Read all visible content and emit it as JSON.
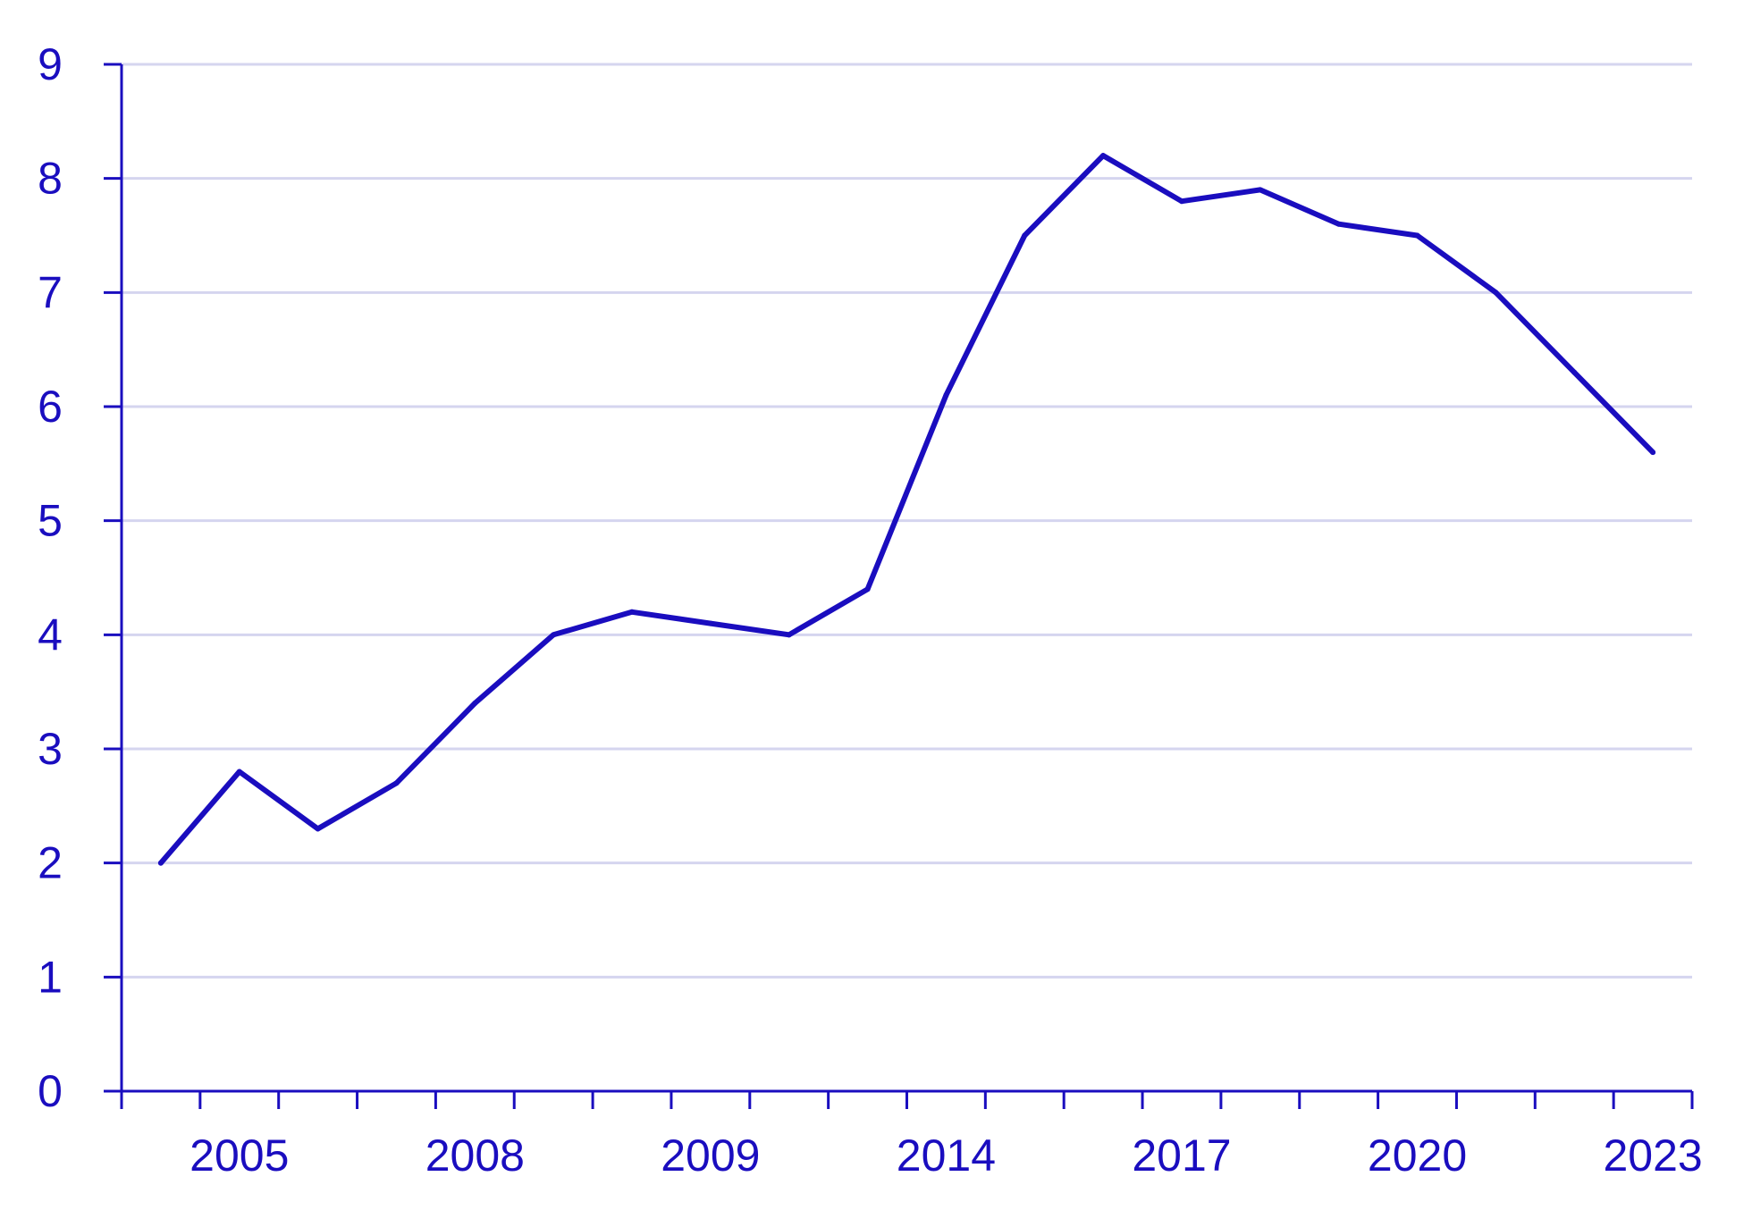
{
  "chart_data": {
    "type": "line",
    "title": "",
    "xlabel": "",
    "ylabel": "",
    "ylim": [
      0,
      9
    ],
    "yticks": [
      0,
      1,
      2,
      3,
      4,
      5,
      6,
      7,
      8,
      9
    ],
    "x_tick_labels": [
      "2005",
      "2008",
      "2009",
      "2014",
      "2017",
      "2020",
      "2023"
    ],
    "grid": true,
    "colors": {
      "line": "#1a0dbf",
      "axis": "#1a0dbf",
      "grid": "#d5d5ef",
      "text": "#1a0dbf"
    },
    "series": [
      {
        "values": [
          2.0,
          2.8,
          2.3,
          2.7,
          3.4,
          4.0,
          4.2,
          4.1,
          4.0,
          4.4,
          6.1,
          7.5,
          8.2,
          7.8,
          7.9,
          7.6,
          7.5,
          7.0,
          6.3,
          5.6
        ]
      }
    ]
  }
}
